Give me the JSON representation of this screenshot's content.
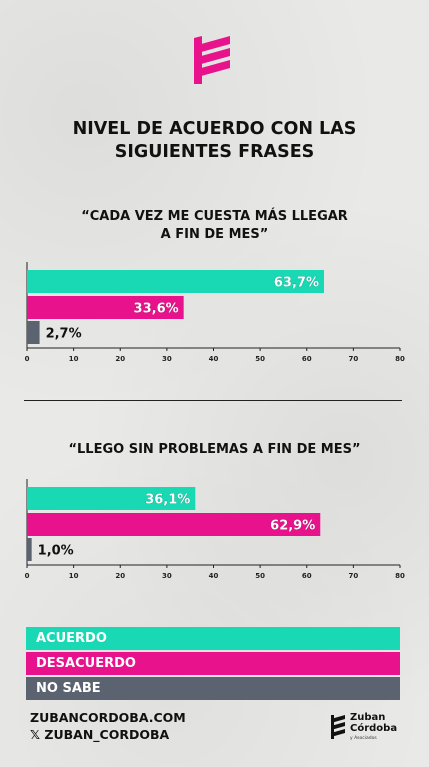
{
  "title": [
    "NIVEL DE ACUERDO CON LAS",
    "SIGUIENTES FRASES"
  ],
  "colors": {
    "acuerdo": "#19d9b5",
    "desacuerdo": "#e8128c",
    "no_sabe": "#5c6370",
    "text": "#111111"
  },
  "chart_data": [
    {
      "type": "bar",
      "orientation": "horizontal",
      "title": [
        "“CADA VEZ ME CUESTA MÁS LLEGAR",
        "A FIN DE MES”"
      ],
      "categories": [
        "ACUERDO",
        "DESACUERDO",
        "NO SABE"
      ],
      "values": [
        63.7,
        33.6,
        2.7
      ],
      "value_labels": [
        "63,7%",
        "33,6%",
        "2,7%"
      ],
      "xlim": [
        0,
        80
      ],
      "xticks": [
        "0",
        "10",
        "20",
        "30",
        "40",
        "50",
        "60",
        "70",
        "80"
      ],
      "grid": false
    },
    {
      "type": "bar",
      "orientation": "horizontal",
      "title": [
        "“LLEGO SIN PROBLEMAS A FIN DE MES”"
      ],
      "categories": [
        "ACUERDO",
        "DESACUERDO",
        "NO SABE"
      ],
      "values": [
        36.1,
        62.9,
        1.0
      ],
      "value_labels": [
        "36,1%",
        "62,9%",
        "1,0%"
      ],
      "xlim": [
        0,
        80
      ],
      "xticks": [
        "0",
        "10",
        "20",
        "30",
        "40",
        "50",
        "60",
        "70",
        "80"
      ],
      "grid": false
    }
  ],
  "legend": [
    "ACUERDO",
    "DESACUERDO",
    "NO SABE"
  ],
  "footer": {
    "website": "ZUBANCORDOBA.COM",
    "social": "𝕏 ZUBAN_CORDOBA"
  },
  "brand": {
    "line1": "Zuban",
    "line2": "Córdoba",
    "line3": "y Asociados",
    "icon": "zuban-logo-icon"
  },
  "logo_icon": "stripes-logo-icon"
}
